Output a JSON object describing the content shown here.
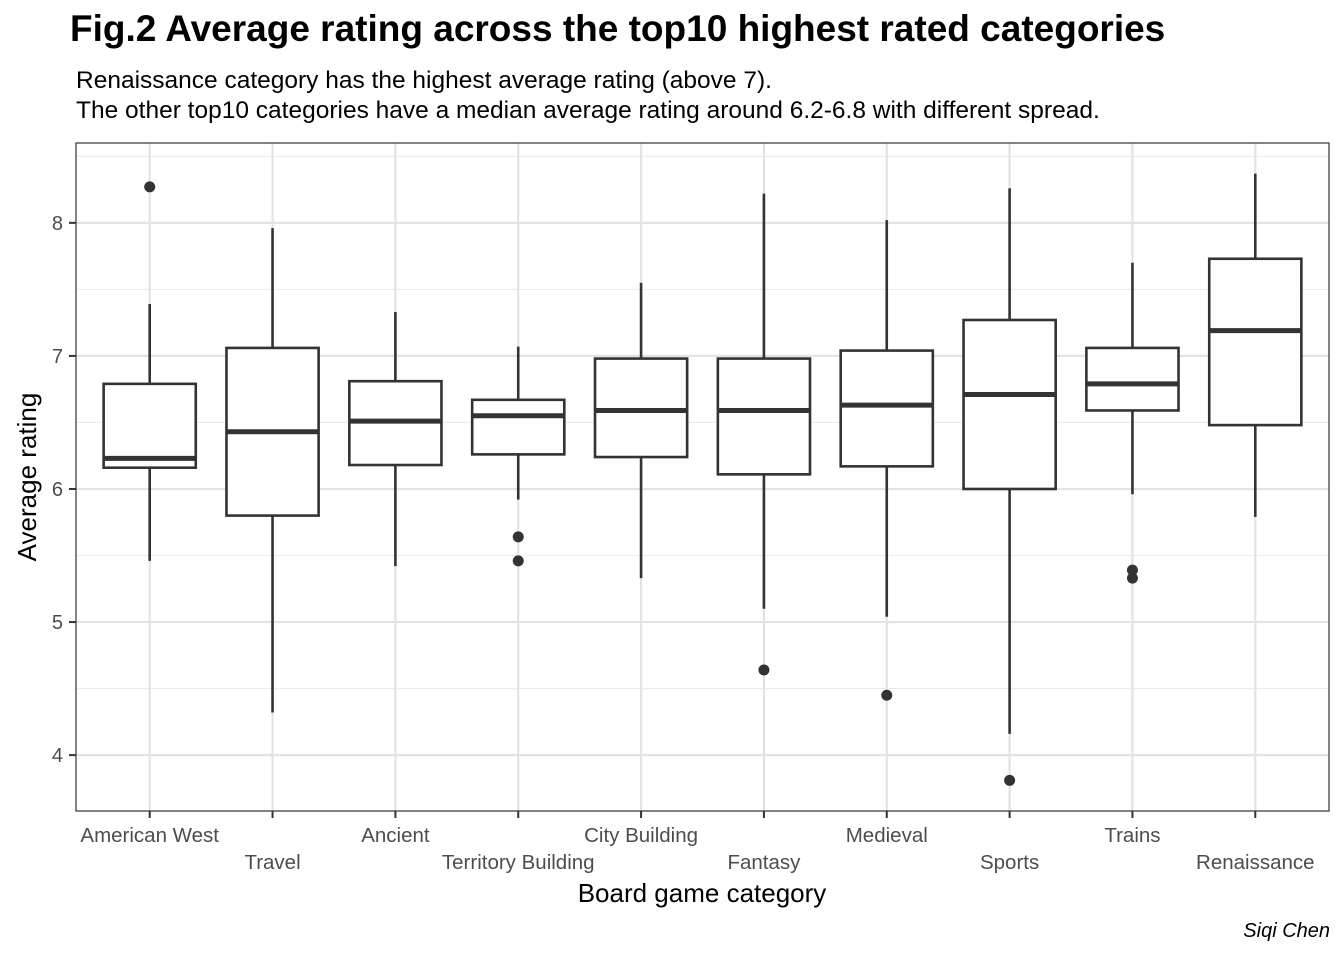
{
  "title": "Fig.2 Average rating across the top10 highest rated categories",
  "subtitle_line1": "Renaissance category has the highest average rating (above 7).",
  "subtitle_line2": "The other top10 categories have a median average rating around 6.2-6.8 with different spread.",
  "caption": "Siqi Chen",
  "chart_data": {
    "type": "box",
    "title": "Fig.2 Average rating across the top10 highest rated categories",
    "xlabel": "Board game category",
    "ylabel": "Average rating",
    "ylim": [
      3.58,
      8.6
    ],
    "yticks": [
      4,
      5,
      6,
      7,
      8
    ],
    "grid": true,
    "categories": [
      "American West",
      "Travel",
      "Ancient",
      "Territory Building",
      "City Building",
      "Fantasy",
      "Medieval",
      "Sports",
      "Trains",
      "Renaissance"
    ],
    "boxes": [
      {
        "category": "American West",
        "whisker_low": 5.46,
        "q1": 6.16,
        "median": 6.23,
        "q3": 6.79,
        "whisker_high": 7.39,
        "outliers": [
          8.27
        ]
      },
      {
        "category": "Travel",
        "whisker_low": 4.32,
        "q1": 5.8,
        "median": 6.43,
        "q3": 7.06,
        "whisker_high": 7.96,
        "outliers": []
      },
      {
        "category": "Ancient",
        "whisker_low": 5.42,
        "q1": 6.18,
        "median": 6.51,
        "q3": 6.81,
        "whisker_high": 7.33,
        "outliers": []
      },
      {
        "category": "Territory Building",
        "whisker_low": 5.92,
        "q1": 6.26,
        "median": 6.55,
        "q3": 6.67,
        "whisker_high": 7.07,
        "outliers": [
          5.64,
          5.46
        ]
      },
      {
        "category": "City Building",
        "whisker_low": 5.33,
        "q1": 6.24,
        "median": 6.59,
        "q3": 6.98,
        "whisker_high": 7.55,
        "outliers": []
      },
      {
        "category": "Fantasy",
        "whisker_low": 5.1,
        "q1": 6.11,
        "median": 6.59,
        "q3": 6.98,
        "whisker_high": 8.22,
        "outliers": [
          4.64
        ]
      },
      {
        "category": "Medieval",
        "whisker_low": 5.04,
        "q1": 6.17,
        "median": 6.63,
        "q3": 7.04,
        "whisker_high": 8.02,
        "outliers": [
          4.45
        ]
      },
      {
        "category": "Sports",
        "whisker_low": 4.16,
        "q1": 6.0,
        "median": 6.71,
        "q3": 7.27,
        "whisker_high": 8.26,
        "outliers": [
          3.81
        ]
      },
      {
        "category": "Trains",
        "whisker_low": 5.96,
        "q1": 6.59,
        "median": 6.79,
        "q3": 7.06,
        "whisker_high": 7.7,
        "outliers": [
          5.39,
          5.33
        ]
      },
      {
        "category": "Renaissance",
        "whisker_low": 5.79,
        "q1": 6.48,
        "median": 7.19,
        "q3": 7.73,
        "whisker_high": 8.37,
        "outliers": []
      }
    ]
  }
}
